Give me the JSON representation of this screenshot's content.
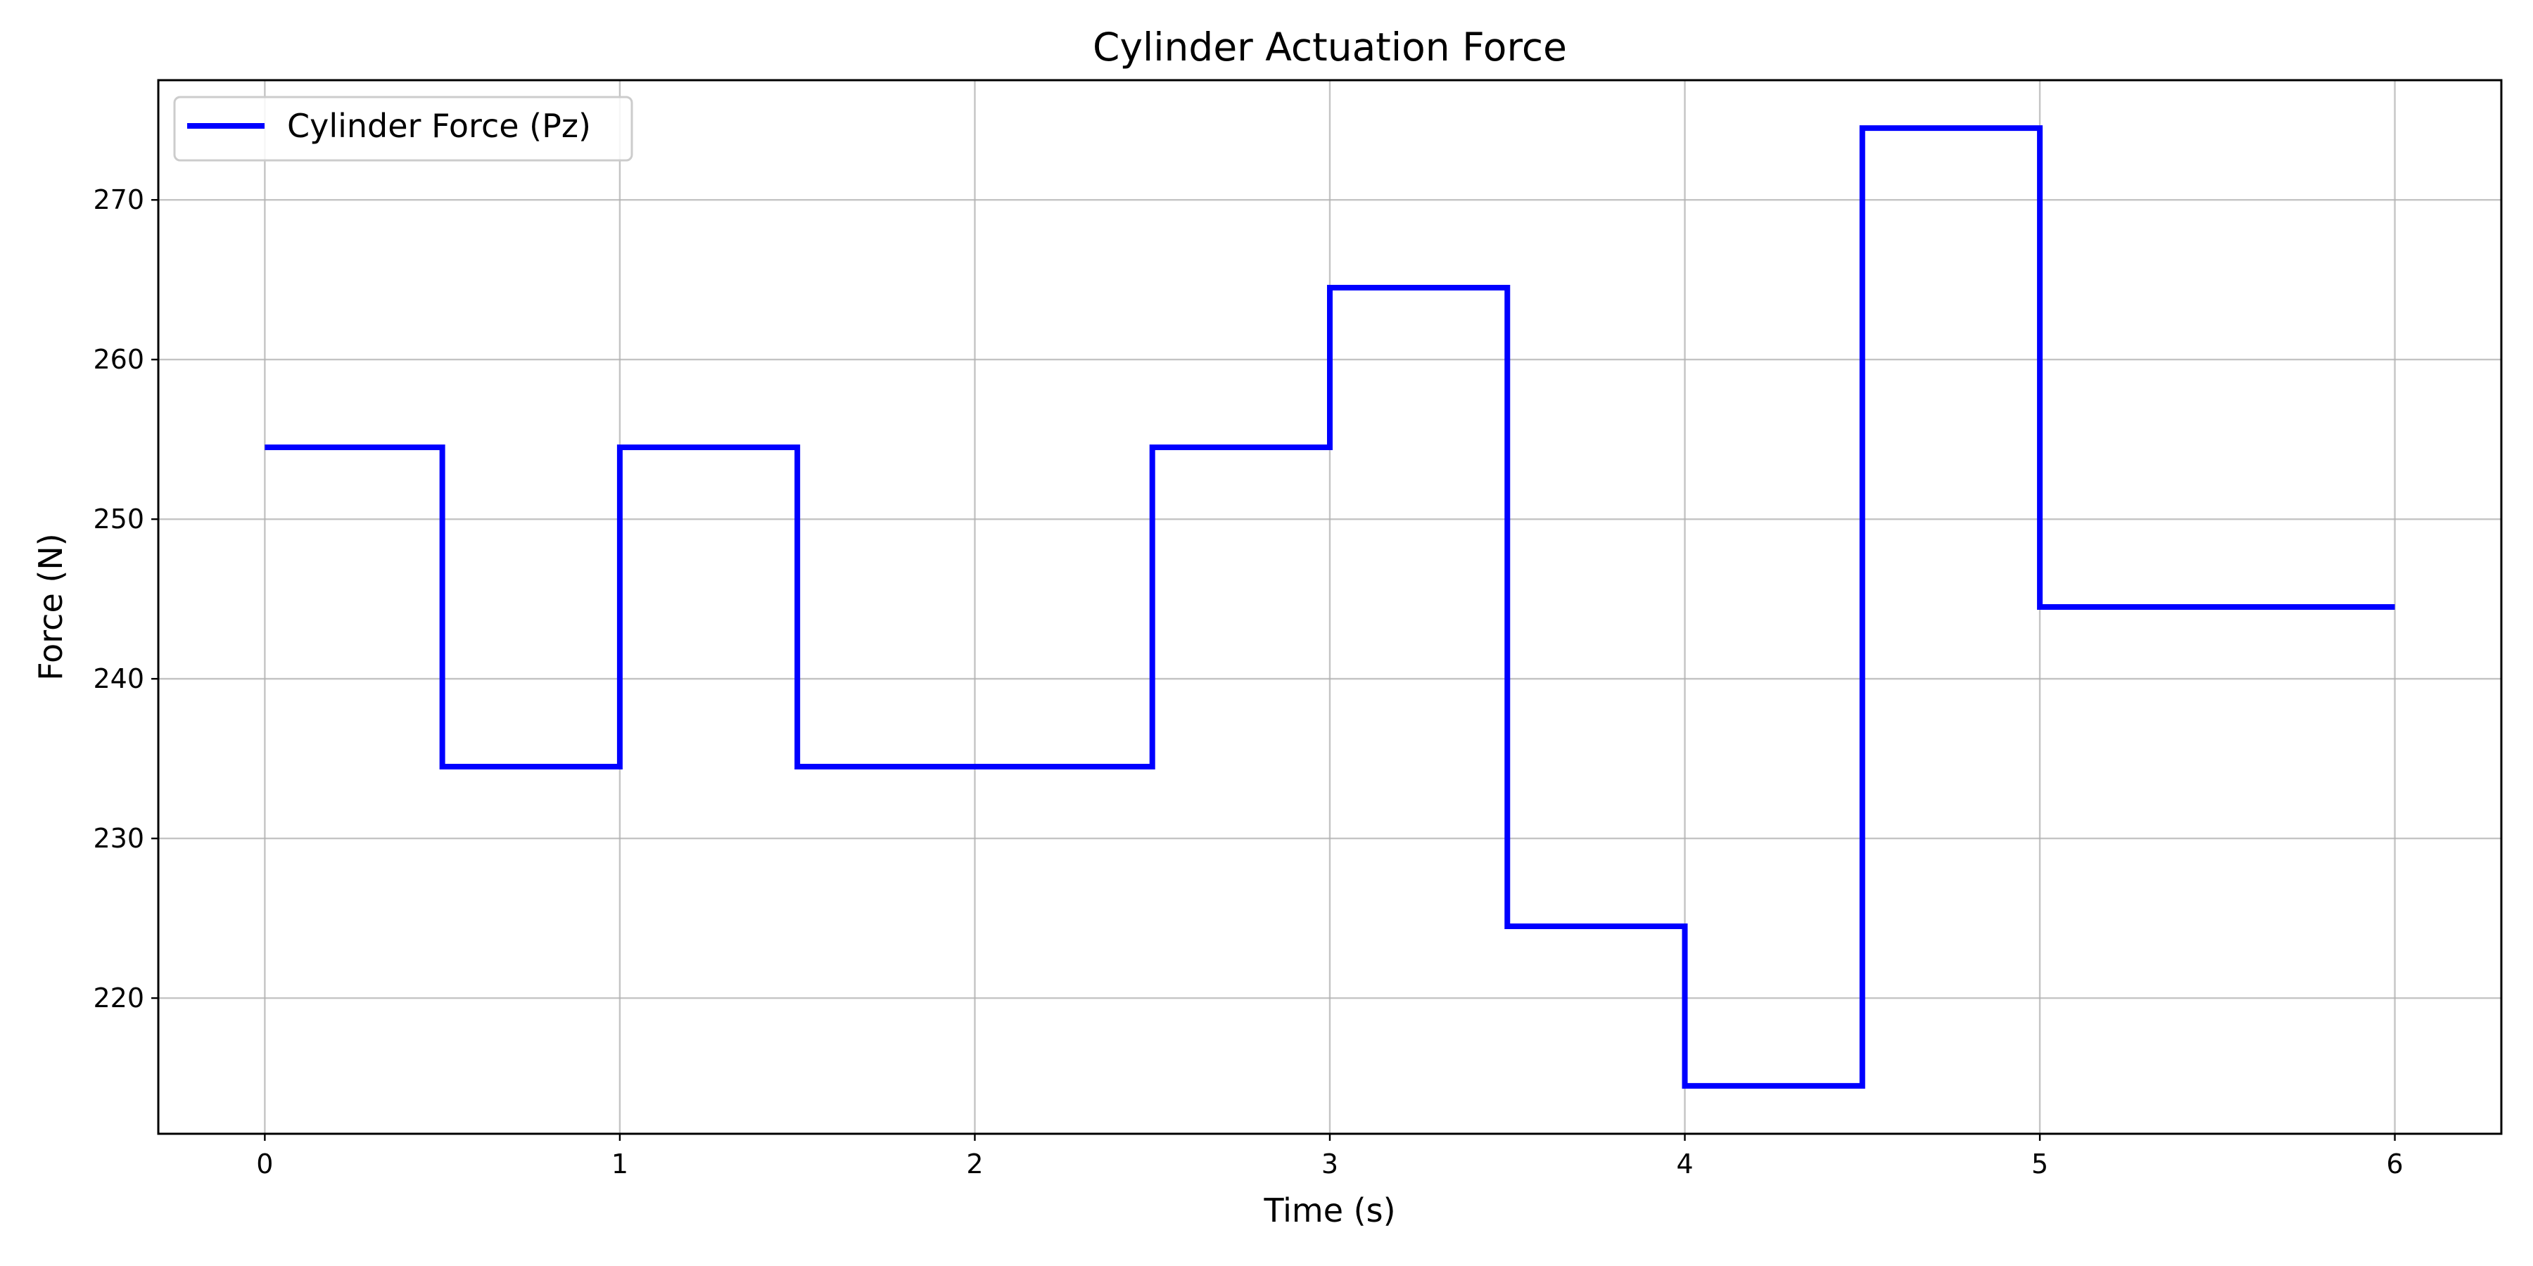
{
  "chart_data": {
    "type": "line",
    "step": "post",
    "title": "Cylinder Actuation Force",
    "xlabel": "Time (s)",
    "ylabel": "Force (N)",
    "xlim": [
      -0.3,
      6.3
    ],
    "ylim": [
      211.5,
      277.5
    ],
    "xticks": [
      0,
      1,
      2,
      3,
      4,
      5,
      6
    ],
    "yticks": [
      220,
      230,
      240,
      250,
      260,
      270
    ],
    "grid": true,
    "legend_position": "top-left",
    "series": [
      {
        "name": "Cylinder Force (Pz)",
        "color": "#0000ff",
        "x": [
          0,
          0.5,
          1.0,
          1.5,
          2.0,
          2.5,
          3.0,
          3.5,
          4.0,
          4.5,
          5.0,
          5.5,
          6.0
        ],
        "y": [
          254.5,
          234.5,
          254.5,
          234.5,
          234.5,
          254.5,
          264.5,
          224.5,
          214.5,
          274.5,
          244.5,
          244.5,
          244.5
        ]
      }
    ]
  }
}
